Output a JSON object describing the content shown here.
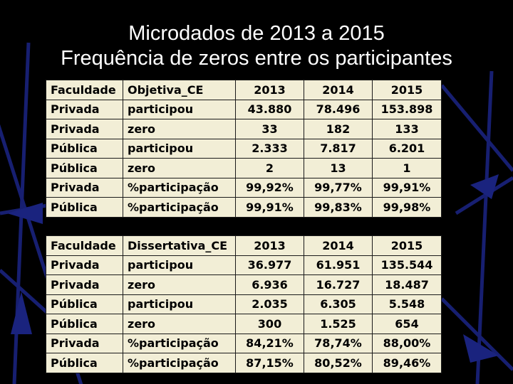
{
  "title_line1": "Microdados de 2013 a 2015",
  "title_line2": "Frequência de zeros entre os participantes",
  "table_objetiva": {
    "header": [
      "Faculdade",
      "Objetiva_CE",
      "2013",
      "2014",
      "2015"
    ],
    "rows": [
      [
        "Privada",
        "participou",
        "43.880",
        "78.496",
        "153.898"
      ],
      [
        "Privada",
        "zero",
        "33",
        "182",
        "133"
      ],
      [
        "Pública",
        "participou",
        "2.333",
        "7.817",
        "6.201"
      ],
      [
        "Pública",
        "zero",
        "2",
        "13",
        "1"
      ],
      [
        "Privada",
        "%participação",
        "99,92%",
        "99,77%",
        "99,91%"
      ],
      [
        "Pública",
        "%participação",
        "99,91%",
        "99,83%",
        "99,98%"
      ]
    ]
  },
  "table_dissertativa": {
    "header": [
      "Faculdade",
      "Dissertativa_CE",
      "2013",
      "2014",
      "2015"
    ],
    "rows": [
      [
        "Privada",
        "participou",
        "36.977",
        "61.951",
        "135.544"
      ],
      [
        "Privada",
        "zero",
        "6.936",
        "16.727",
        "18.487"
      ],
      [
        "Pública",
        "participou",
        "2.035",
        "6.305",
        "5.548"
      ],
      [
        "Pública",
        "zero",
        "300",
        "1.525",
        "654"
      ],
      [
        "Privada",
        "%participação",
        "84,21%",
        "78,74%",
        "88,00%"
      ],
      [
        "Pública",
        "%participação",
        "87,15%",
        "80,52%",
        "89,46%"
      ]
    ]
  },
  "colors": {
    "background": "#000000",
    "decor": "#1a237e",
    "title": "#ffffff",
    "table_fill": "#f2eed6"
  }
}
